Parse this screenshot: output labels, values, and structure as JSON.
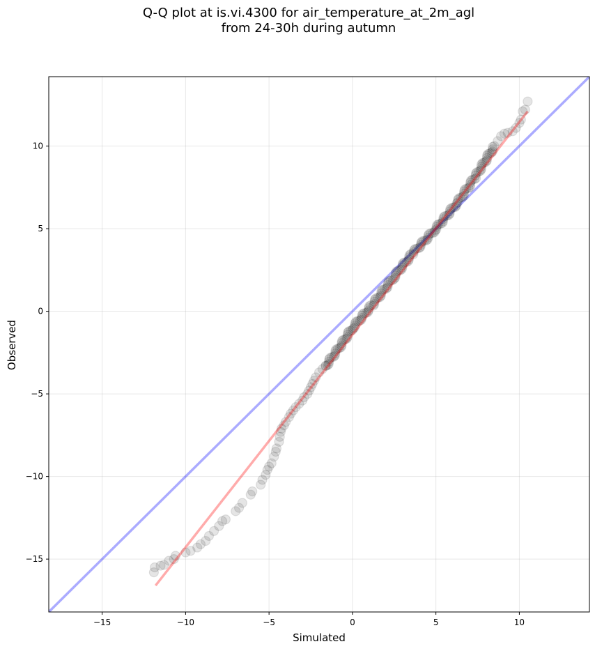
{
  "chart_data": {
    "type": "scatter",
    "title_lines": [
      "Q-Q plot at is.vi.4300 for air_temperature_at_2m_agl",
      "from 24-30h during autumn"
    ],
    "xlabel": "Simulated",
    "ylabel": "Observed",
    "xlim": [
      -18.2,
      14.2
    ],
    "ylim": [
      -18.2,
      14.2
    ],
    "xticks": [
      -15,
      -10,
      -5,
      0,
      5,
      10
    ],
    "yticks": [
      -15,
      -10,
      -5,
      0,
      5,
      10
    ],
    "xtick_labels": [
      "−15",
      "−10",
      "−5",
      "0",
      "5",
      "10"
    ],
    "ytick_labels": [
      "−15",
      "−10",
      "−5",
      "0",
      "5",
      "10"
    ],
    "grid": true,
    "colors": {
      "points": "#000000",
      "identity_line": "#0000ff",
      "fit_line": "#ff0000"
    },
    "identity_line": {
      "x": [
        -18.2,
        14.2
      ],
      "y": [
        -18.2,
        14.2
      ]
    },
    "fit_line": {
      "x": [
        -11.8,
        10.5
      ],
      "y": [
        -16.6,
        12.1
      ]
    },
    "tail_points": [
      [
        -11.9,
        -15.8
      ],
      [
        -11.85,
        -15.5
      ],
      [
        -11.5,
        -15.4
      ],
      [
        -11.3,
        -15.35
      ],
      [
        -11.0,
        -15.1
      ],
      [
        -10.7,
        -15.0
      ],
      [
        -10.6,
        -14.8
      ],
      [
        -10.0,
        -14.6
      ],
      [
        -9.7,
        -14.5
      ],
      [
        -9.3,
        -14.3
      ],
      [
        -9.1,
        -14.1
      ],
      [
        -8.8,
        -13.9
      ],
      [
        -8.6,
        -13.6
      ],
      [
        -8.3,
        -13.3
      ],
      [
        -8.0,
        -13.0
      ],
      [
        -7.8,
        -12.7
      ],
      [
        -7.6,
        -12.6
      ],
      [
        -7.0,
        -12.1
      ],
      [
        -6.8,
        -11.9
      ],
      [
        -6.6,
        -11.6
      ],
      [
        -6.1,
        -11.1
      ],
      [
        -6.0,
        -10.9
      ],
      [
        -5.5,
        -10.5
      ],
      [
        -5.4,
        -10.2
      ],
      [
        -5.2,
        -9.9
      ],
      [
        -5.1,
        -9.6
      ],
      [
        -5.0,
        -9.4
      ],
      [
        -4.85,
        -9.2
      ],
      [
        -4.7,
        -8.8
      ],
      [
        -4.6,
        -8.5
      ],
      [
        -4.55,
        -8.3
      ],
      [
        -4.4,
        -7.9
      ],
      [
        -4.35,
        -7.6
      ],
      [
        -4.3,
        -7.3
      ],
      [
        -4.25,
        -7.1
      ],
      [
        -4.1,
        -6.9
      ],
      [
        -4.0,
        -6.7
      ],
      [
        -3.8,
        -6.4
      ],
      [
        -3.7,
        -6.2
      ],
      [
        -3.55,
        -6.0
      ],
      [
        -3.4,
        -5.8
      ],
      [
        -3.2,
        -5.6
      ],
      [
        -3.0,
        -5.4
      ],
      [
        -2.9,
        -5.2
      ],
      [
        -2.7,
        -5.0
      ],
      [
        -2.6,
        -4.8
      ],
      [
        -2.5,
        -4.6
      ],
      [
        -2.4,
        -4.4
      ],
      [
        -2.3,
        -4.2
      ],
      [
        -2.2,
        -4.0
      ],
      [
        -2.0,
        -3.7
      ],
      [
        -1.8,
        -3.5
      ],
      [
        -1.6,
        -3.3
      ]
    ],
    "upper_tail_points": [
      [
        8.5,
        10.0
      ],
      [
        8.7,
        10.3
      ],
      [
        8.9,
        10.6
      ],
      [
        9.1,
        10.75
      ],
      [
        9.3,
        10.8
      ],
      [
        9.6,
        10.9
      ],
      [
        9.8,
        11.1
      ],
      [
        10.0,
        11.4
      ],
      [
        10.1,
        11.6
      ],
      [
        10.2,
        12.1
      ],
      [
        10.35,
        12.2
      ],
      [
        10.5,
        12.7
      ]
    ]
  }
}
